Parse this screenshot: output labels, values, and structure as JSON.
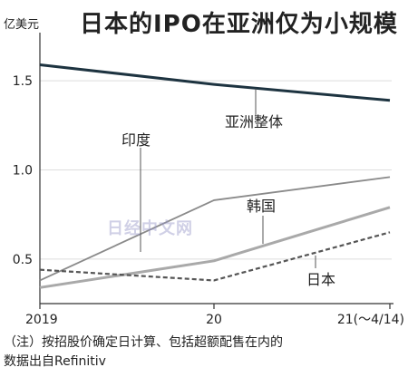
{
  "title": "日本的IPO在亚洲仅为小规模",
  "unit": "亿美元",
  "note_line1": "（注）按招股价确定日计算、包括超额配售在内的",
  "note_line2": "数据出自Refinitiv",
  "watermark": "日经中文网",
  "chart_data": {
    "type": "line",
    "title": "日本的IPO在亚洲仅为小规模",
    "ylabel": "亿美元",
    "ylim": [
      0.25,
      1.75
    ],
    "yticks": [
      0.5,
      1.0,
      1.5
    ],
    "ytick_labels": [
      "0.5",
      "1.0",
      "1.5"
    ],
    "x": [
      0,
      1,
      2
    ],
    "xtick_labels": [
      "2019",
      "20",
      "21(〜4/14)"
    ],
    "series": [
      {
        "name": "亚洲整体",
        "values": [
          1.59,
          1.48,
          1.39
        ],
        "color": "#1d3340",
        "style": "solid",
        "width": 3
      },
      {
        "name": "印度",
        "values": [
          0.38,
          0.83,
          0.96
        ],
        "color": "#8a8a8a",
        "style": "solid",
        "width": 1.8
      },
      {
        "name": "韩国",
        "values": [
          0.34,
          0.49,
          0.79
        ],
        "color": "#a9a9a9",
        "style": "solid",
        "width": 3
      },
      {
        "name": "日本",
        "values": [
          0.44,
          0.38,
          0.65
        ],
        "color": "#555555",
        "style": "dashed",
        "width": 2.2
      }
    ]
  }
}
